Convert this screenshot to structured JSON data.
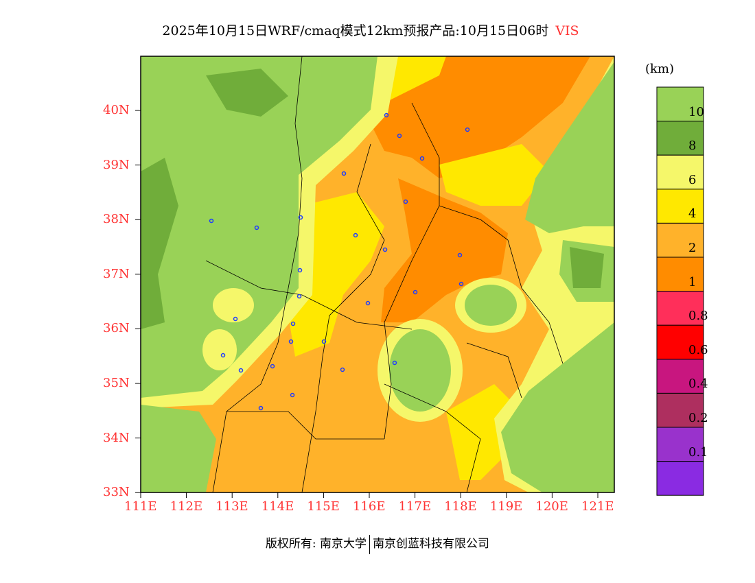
{
  "title": {
    "text": "2025年10月15日WRF/cmaq模式12km预报产品:10月15日06时",
    "variable": "VIS"
  },
  "colorbar": {
    "unit": "(km)",
    "colors": [
      "#99D257",
      "#70AD3A",
      "#F5F76A",
      "#FFE800",
      "#FFB22A",
      "#FF8C00",
      "#FF2F5A",
      "#FF0000",
      "#C8167F",
      "#AE2F5F",
      "#9932CC",
      "#8A2BE2"
    ],
    "labels": [
      "10",
      "8",
      "6",
      "4",
      "2",
      "1",
      "0.8",
      "0.6",
      "0.4",
      "0.2",
      "0.1"
    ]
  },
  "axes": {
    "lat_labels": [
      "40N",
      "39N",
      "38N",
      "37N",
      "36N",
      "35N",
      "34N",
      "33N"
    ],
    "lon_labels": [
      "111E",
      "112E",
      "113E",
      "114E",
      "115E",
      "116E",
      "117E",
      "118E",
      "119E",
      "120E",
      "121E"
    ]
  },
  "footer": {
    "left": "版权所有: 南京大学",
    "right": "南京创蓝科技有限公司"
  }
}
